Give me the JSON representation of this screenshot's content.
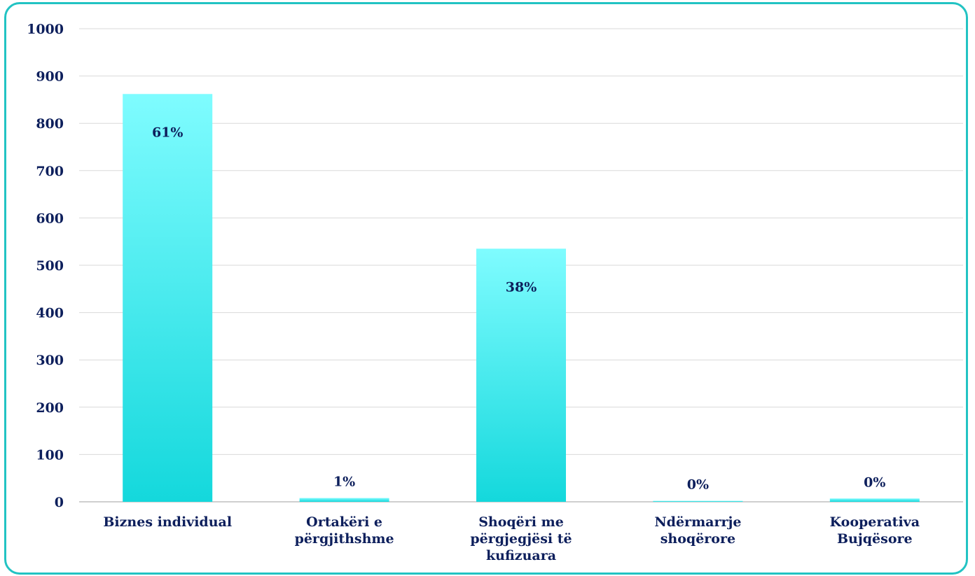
{
  "chart_data": {
    "type": "bar",
    "categories": [
      [
        "Biznes individual"
      ],
      [
        "Ortakëri e",
        "përgjithshme"
      ],
      [
        "Shoqëri me",
        "përgjegjësi të",
        "kufizuara"
      ],
      [
        "Ndërmarrje",
        "shoqërore"
      ],
      [
        "Kooperativa",
        "Bujqësore"
      ]
    ],
    "values": [
      862,
      8,
      535,
      2,
      7
    ],
    "data_labels": [
      "61%",
      "1%",
      "38%",
      "0%",
      "0%"
    ],
    "ylim": [
      0,
      1000
    ],
    "yticks": [
      0,
      100,
      200,
      300,
      400,
      500,
      600,
      700,
      800,
      900,
      1000
    ],
    "grid": true,
    "legend": "none",
    "colors": {
      "bar_top": "#7ffcff",
      "bar_bottom": "#14d8dc",
      "grid": "#d9d9d9",
      "text": "#0d1f5c",
      "frame": "#22c3c3"
    }
  }
}
